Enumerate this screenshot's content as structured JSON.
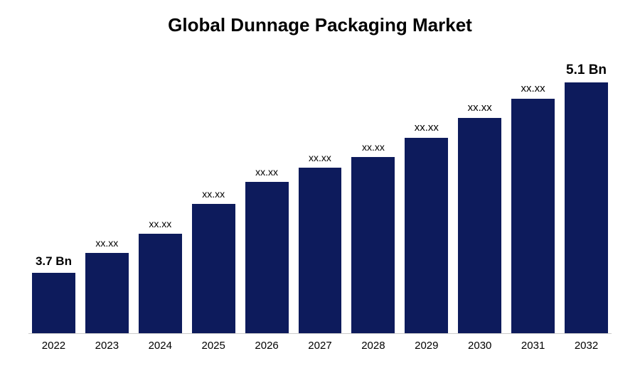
{
  "chart": {
    "type": "bar",
    "title": "Global Dunnage Packaging Market",
    "title_fontsize": 26,
    "title_color": "#000000",
    "background_color": "#ffffff",
    "bar_color": "#0d1b5c",
    "axis_line_color": "#cccccc",
    "label_fontsize": 15,
    "xaxis_fontsize": 15,
    "categories": [
      "2022",
      "2023",
      "2024",
      "2025",
      "2026",
      "2027",
      "2028",
      "2029",
      "2030",
      "2031",
      "2032"
    ],
    "value_labels": [
      "3.7  Bn",
      "xx.xx",
      "xx.xx",
      "xx.xx",
      "xx.xx",
      "xx.xx",
      "xx.xx",
      "xx.xx",
      "xx.xx",
      "xx.xx",
      "5.1 Bn"
    ],
    "label_bold": [
      true,
      false,
      false,
      false,
      false,
      false,
      false,
      false,
      false,
      false,
      true
    ],
    "label_size_override": [
      17,
      14,
      14,
      14,
      14,
      14,
      14,
      15,
      15,
      15,
      19
    ],
    "heights_pct": [
      22,
      29,
      36,
      47,
      55,
      60,
      64,
      71,
      78,
      85,
      91
    ],
    "ylim": [
      0,
      100
    ]
  }
}
